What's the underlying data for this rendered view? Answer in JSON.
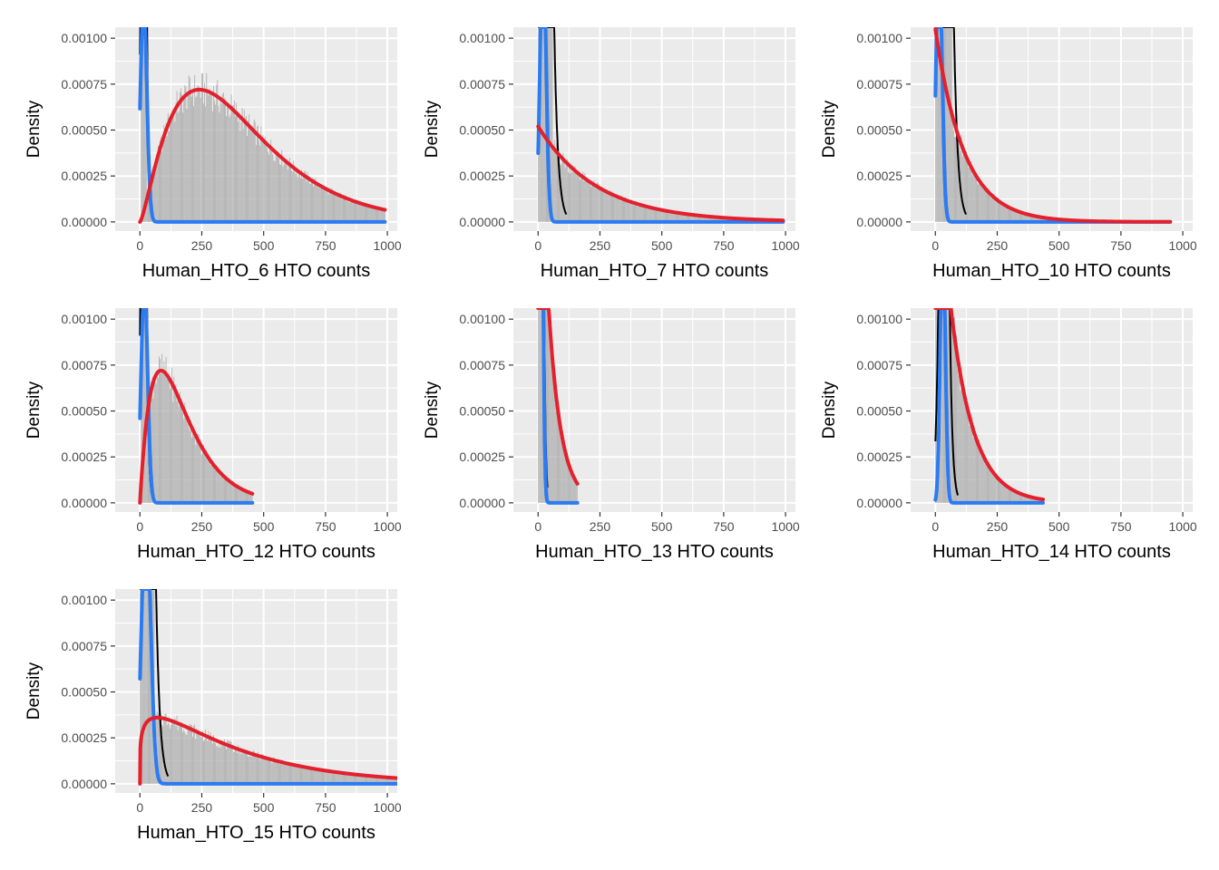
{
  "colors": {
    "panel_background": "#EBEBEB",
    "grid_major": "#FFFFFF",
    "histogram_fill": "#ABABAB",
    "empirical_density": "#000000",
    "negative_fit": "#2B7BF2",
    "positive_fit": "#E3202C"
  },
  "chart_data": [
    {
      "type": "histogram",
      "title": "",
      "xlabel": "Human_HTO_6 HTO counts",
      "ylabel": "Density",
      "xlim": [
        -100,
        1040
      ],
      "ylim": [
        -5e-05,
        0.00106
      ],
      "x_ticks": [
        "0",
        "250",
        "500",
        "750",
        "1000"
      ],
      "y_ticks": [
        "0.00000",
        "0.00025",
        "0.00050",
        "0.00075",
        "0.00100"
      ],
      "grid": true,
      "histogram": {
        "start": 0,
        "end": 990,
        "peak_x": 240,
        "peak_y": 0.00072,
        "shape": "gamma"
      },
      "series": [
        {
          "name": "negative fit",
          "kind": "gaussian",
          "mean": 15,
          "sd": 13,
          "height": 0.0012,
          "x_range": [
            0,
            990
          ]
        },
        {
          "name": "positive fit",
          "kind": "gamma",
          "peak_x": 240,
          "peak_y": 0.00072,
          "shape_k": 2.4,
          "x_range": [
            0,
            990
          ]
        },
        {
          "name": "empirical density",
          "kind": "spike",
          "center": 15,
          "width": 24,
          "height": 0.0015
        }
      ]
    },
    {
      "type": "histogram",
      "title": "",
      "xlabel": "Human_HTO_7 HTO counts",
      "ylabel": "Density",
      "xlim": [
        -100,
        1040
      ],
      "ylim": [
        -5e-05,
        0.00106
      ],
      "x_ticks": [
        "0",
        "250",
        "500",
        "750",
        "1000"
      ],
      "y_ticks": [
        "0.00000",
        "0.00025",
        "0.00050",
        "0.00075",
        "0.00100"
      ],
      "grid": true,
      "histogram": {
        "start": 0,
        "end": 990,
        "peak_x": 0,
        "peak_y": 0.00052,
        "shape": "exponential",
        "tail": 240
      },
      "series": [
        {
          "name": "negative fit",
          "kind": "gaussian",
          "mean": 20,
          "sd": 12,
          "height": 0.0015,
          "x_range": [
            0,
            990
          ]
        },
        {
          "name": "positive fit",
          "kind": "exponential",
          "y0": 0.00052,
          "tail": 240,
          "x_range": [
            0,
            990
          ]
        },
        {
          "name": "empirical density",
          "kind": "spike",
          "center": 30,
          "width": 60,
          "height": 0.0015
        }
      ]
    },
    {
      "type": "histogram",
      "title": "",
      "xlabel": "Human_HTO_10 HTO counts",
      "ylabel": "Density",
      "xlim": [
        -100,
        1040
      ],
      "ylim": [
        -5e-05,
        0.00106
      ],
      "x_ticks": [
        "0",
        "250",
        "500",
        "750",
        "1000"
      ],
      "y_ticks": [
        "0.00000",
        "0.00025",
        "0.00050",
        "0.00075",
        "0.00100"
      ],
      "grid": true,
      "histogram": {
        "start": 0,
        "end": 950,
        "peak_x": 0,
        "peak_y": 0.00105,
        "shape": "exponential",
        "tail": 115
      },
      "series": [
        {
          "name": "negative fit",
          "kind": "gaussian",
          "mean": 15,
          "sd": 12,
          "height": 0.0015,
          "x_range": [
            0,
            950
          ]
        },
        {
          "name": "positive fit",
          "kind": "exponential",
          "y0": 0.00105,
          "tail": 115,
          "x_range": [
            0,
            950
          ]
        },
        {
          "name": "empirical density",
          "kind": "spike",
          "center": 40,
          "width": 60,
          "height": 0.0015
        }
      ]
    },
    {
      "type": "histogram",
      "title": "",
      "xlabel": "Human_HTO_12 HTO counts",
      "ylabel": "Density",
      "xlim": [
        -100,
        1040
      ],
      "ylim": [
        -5e-05,
        0.00106
      ],
      "x_ticks": [
        "0",
        "250",
        "500",
        "750",
        "1000"
      ],
      "y_ticks": [
        "0.00000",
        "0.00025",
        "0.00050",
        "0.00075",
        "0.00100"
      ],
      "grid": true,
      "histogram": {
        "start": 0,
        "end": 455,
        "peak_x": 85,
        "peak_y": 0.00072,
        "shape": "gamma"
      },
      "series": [
        {
          "name": "negative fit",
          "kind": "gaussian",
          "mean": 18,
          "sd": 13,
          "height": 0.0012,
          "x_range": [
            0,
            455
          ]
        },
        {
          "name": "positive fit",
          "kind": "gamma",
          "peak_x": 85,
          "peak_y": 0.00072,
          "shape_k": 2.0,
          "x_range": [
            0,
            455
          ]
        },
        {
          "name": "empirical density",
          "kind": "spike",
          "center": 15,
          "width": 24,
          "height": 0.0015
        }
      ]
    },
    {
      "type": "histogram",
      "title": "",
      "xlabel": "Human_HTO_13 HTO counts",
      "ylabel": "Density",
      "xlim": [
        -100,
        1040
      ],
      "ylim": [
        -5e-05,
        0.00106
      ],
      "x_ticks": [
        "0",
        "250",
        "500",
        "750",
        "1000"
      ],
      "y_ticks": [
        "0.00000",
        "0.00025",
        "0.00050",
        "0.00075",
        "0.00100"
      ],
      "grid": true,
      "histogram": {
        "start": 0,
        "end": 160,
        "peak_x": 0,
        "peak_y": 0.0025,
        "shape": "exponential",
        "tail": 50
      },
      "series": [
        {
          "name": "negative fit",
          "kind": "gaussian",
          "mean": 10,
          "sd": 8,
          "height": 0.003,
          "x_range": [
            0,
            160
          ]
        },
        {
          "name": "positive fit",
          "kind": "exponential",
          "y0": 0.0025,
          "tail": 50,
          "x_range": [
            0,
            160
          ]
        },
        {
          "name": "empirical density",
          "kind": "spike",
          "center": 10,
          "width": 20,
          "height": 0.003
        }
      ]
    },
    {
      "type": "histogram",
      "title": "",
      "xlabel": "Human_HTO_14 HTO counts",
      "ylabel": "Density",
      "xlim": [
        -100,
        1040
      ],
      "ylim": [
        -5e-05,
        0.00106
      ],
      "x_ticks": [
        "0",
        "250",
        "500",
        "750",
        "1000"
      ],
      "y_ticks": [
        "0.00000",
        "0.00025",
        "0.00050",
        "0.00075",
        "0.00100"
      ],
      "grid": true,
      "histogram": {
        "start": 0,
        "end": 435,
        "peak_x": 0,
        "peak_y": 0.0021,
        "shape": "exponential",
        "tail": 92
      },
      "series": [
        {
          "name": "negative fit",
          "kind": "gaussian",
          "mean": 30,
          "sd": 10,
          "height": 0.0015,
          "x_range": [
            0,
            435
          ]
        },
        {
          "name": "positive fit",
          "kind": "exponential",
          "y0": 0.0021,
          "tail": 92,
          "x_range": [
            0,
            435
          ]
        },
        {
          "name": "empirical density",
          "kind": "spike",
          "center": 35,
          "width": 40,
          "height": 0.0015
        }
      ]
    },
    {
      "type": "histogram",
      "title": "",
      "xlabel": "Human_HTO_15 HTO counts",
      "ylabel": "Density",
      "xlim": [
        -100,
        1040
      ],
      "ylim": [
        -5e-05,
        0.00106
      ],
      "x_ticks": [
        "0",
        "250",
        "500",
        "750",
        "1000"
      ],
      "y_ticks": [
        "0.00000",
        "0.00025",
        "0.00050",
        "0.00075",
        "0.00100"
      ],
      "grid": true,
      "histogram": {
        "start": 0,
        "end": 1040,
        "peak_x": 70,
        "peak_y": 0.00036,
        "shape": "gamma-long"
      },
      "series": [
        {
          "name": "negative fit",
          "kind": "gaussian",
          "mean": 25,
          "sd": 18,
          "height": 0.0015,
          "x_range": [
            0,
            1040
          ]
        },
        {
          "name": "positive fit",
          "kind": "gamma",
          "peak_x": 70,
          "peak_y": 0.00036,
          "shape_k": 1.22,
          "x_range": [
            0,
            1040
          ]
        },
        {
          "name": "empirical density",
          "kind": "spike",
          "center": 30,
          "width": 60,
          "height": 0.0015
        }
      ]
    }
  ]
}
